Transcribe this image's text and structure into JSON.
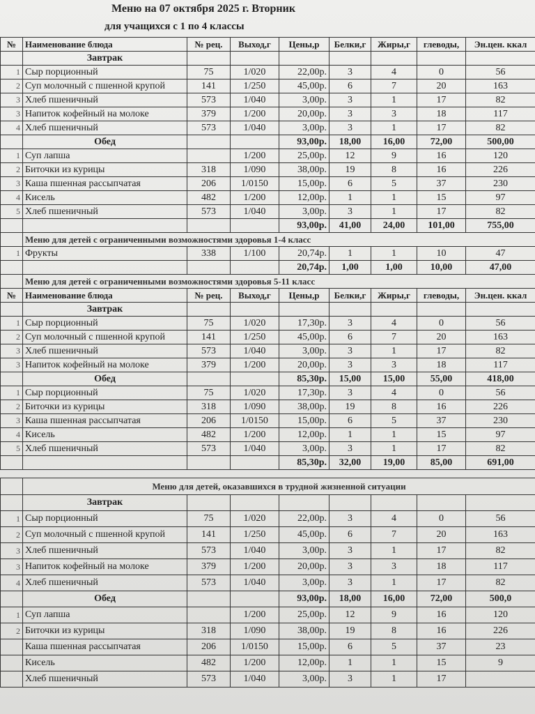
{
  "title": "Меню на 07 октября 2025 г. Вторник",
  "subtitle": "для учащихся с 1 по 4 классы",
  "headers": [
    "№",
    "Наименование блюда",
    "№ рец.",
    "Выход,г",
    "Цены,р",
    "Белки,г",
    "Жиры,г",
    "Углеводы,г",
    "Эн.цен. ккал"
  ],
  "header_visible": [
    "№",
    "Наименование блюда",
    "№ рец.",
    "Выход,г",
    "Цены,р",
    "Белки,г",
    "Жиры,г",
    "глеводы,",
    "Эн.цен. ккал"
  ],
  "table1": [
    {
      "type": "header"
    },
    {
      "type": "cat",
      "cells": [
        "",
        "Завтрак",
        "",
        "",
        "",
        "",
        "",
        "",
        ""
      ]
    },
    {
      "type": "item",
      "cells": [
        "1",
        "Сыр порционный",
        "75",
        "1/020",
        "22,00р.",
        "3",
        "4",
        "0",
        "56"
      ]
    },
    {
      "type": "item",
      "cells": [
        "2",
        "Суп молочный с пшенной крупой",
        "141",
        "1/250",
        "45,00р.",
        "6",
        "7",
        "20",
        "163"
      ]
    },
    {
      "type": "item",
      "cells": [
        "3",
        "Хлеб пшеничный",
        "573",
        "1/040",
        "3,00р.",
        "3",
        "1",
        "17",
        "82"
      ]
    },
    {
      "type": "item",
      "cells": [
        "3",
        "Напиток кофейный на молоке",
        "379",
        "1/200",
        "20,00р.",
        "3",
        "3",
        "18",
        "117"
      ]
    },
    {
      "type": "item",
      "cells": [
        "4",
        "Хлеб пшеничный",
        "573",
        "1/040",
        "3,00р.",
        "3",
        "1",
        "17",
        "82"
      ]
    },
    {
      "type": "cat",
      "bold": true,
      "cells": [
        "",
        "Обед",
        "",
        "",
        "93,00р.",
        "18,00",
        "16,00",
        "72,00",
        "500,00"
      ]
    },
    {
      "type": "item",
      "cells": [
        "1",
        "Суп лапша",
        "",
        "1/200",
        "25,00р.",
        "12",
        "9",
        "16",
        "120"
      ]
    },
    {
      "type": "item",
      "cells": [
        "2",
        "Биточки из курицы",
        "318",
        "1/090",
        "38,00р.",
        "19",
        "8",
        "16",
        "226"
      ]
    },
    {
      "type": "item",
      "cells": [
        "3",
        "Каша пшенная рассыпчатая",
        "206",
        "1/0150",
        "15,00р.",
        "6",
        "5",
        "37",
        "230"
      ]
    },
    {
      "type": "item",
      "cells": [
        "4",
        "Кисель",
        "482",
        "1/200",
        "12,00р.",
        "1",
        "1",
        "15",
        "97"
      ]
    },
    {
      "type": "item",
      "cells": [
        "5",
        "Хлеб пшеничный",
        "573",
        "1/040",
        "3,00р.",
        "3",
        "1",
        "17",
        "82"
      ]
    },
    {
      "type": "total",
      "cells": [
        "",
        "",
        "",
        "",
        "93,00р.",
        "41,00",
        "24,00",
        "101,00",
        "755,00"
      ]
    },
    {
      "type": "sect",
      "text": "Меню для детей с ограниченными возможностями здоровья 1-4 класс"
    },
    {
      "type": "item",
      "cells": [
        "1",
        "Фрукты",
        "338",
        "1/100",
        "20,74р.",
        "1",
        "1",
        "10",
        "47"
      ]
    },
    {
      "type": "total",
      "cells": [
        "",
        "",
        "",
        "",
        "20,74р.",
        "1,00",
        "1,00",
        "10,00",
        "47,00"
      ]
    },
    {
      "type": "sect",
      "text": "Меню для детей с ограниченными возможностями здоровья 5-11 класс"
    },
    {
      "type": "header"
    },
    {
      "type": "cat",
      "cells": [
        "",
        "Завтрак",
        "",
        "",
        "",
        "",
        "",
        "",
        ""
      ]
    },
    {
      "type": "item",
      "cells": [
        "1",
        "Сыр порционный",
        "75",
        "1/020",
        "17,30р.",
        "3",
        "4",
        "0",
        "56"
      ]
    },
    {
      "type": "item",
      "cells": [
        "2",
        "Суп молочный с пшенной крупой",
        "141",
        "1/250",
        "45,00р.",
        "6",
        "7",
        "20",
        "163"
      ]
    },
    {
      "type": "item",
      "cells": [
        "3",
        "Хлеб пшеничный",
        "573",
        "1/040",
        "3,00р.",
        "3",
        "1",
        "17",
        "82"
      ]
    },
    {
      "type": "item",
      "cells": [
        "3",
        "Напиток кофейный на молоке",
        "379",
        "1/200",
        "20,00р.",
        "3",
        "3",
        "18",
        "117"
      ]
    },
    {
      "type": "cat",
      "bold": true,
      "cells": [
        "",
        "Обед",
        "",
        "",
        "85,30р.",
        "15,00",
        "15,00",
        "55,00",
        "418,00"
      ]
    },
    {
      "type": "item",
      "cells": [
        "1",
        "Сыр порционный",
        "75",
        "1/020",
        "17,30р.",
        "3",
        "4",
        "0",
        "56"
      ]
    },
    {
      "type": "item",
      "cells": [
        "2",
        "Биточки из курицы",
        "318",
        "1/090",
        "38,00р.",
        "19",
        "8",
        "16",
        "226"
      ]
    },
    {
      "type": "item",
      "cells": [
        "3",
        "Каша пшенная рассыпчатая",
        "206",
        "1/0150",
        "15,00р.",
        "6",
        "5",
        "37",
        "230"
      ]
    },
    {
      "type": "item",
      "cells": [
        "4",
        "Кисель",
        "482",
        "1/200",
        "12,00р.",
        "1",
        "1",
        "15",
        "97"
      ]
    },
    {
      "type": "item",
      "cells": [
        "5",
        "Хлеб пшеничный",
        "573",
        "1/040",
        "3,00р.",
        "3",
        "1",
        "17",
        "82"
      ]
    },
    {
      "type": "total",
      "cells": [
        "",
        "",
        "",
        "",
        "85,30р.",
        "32,00",
        "19,00",
        "85,00",
        "691,00"
      ]
    }
  ],
  "table2": [
    {
      "type": "sect",
      "text": "Меню для детей, оказавшихся в трудной жизненной ситуации"
    },
    {
      "type": "cat",
      "cells": [
        "",
        "Завтрак",
        "",
        "",
        "",
        "",
        "",
        "",
        ""
      ]
    },
    {
      "type": "item",
      "cells": [
        "1",
        "Сыр порционный",
        "75",
        "1/020",
        "22,00р.",
        "3",
        "4",
        "0",
        "56"
      ]
    },
    {
      "type": "item",
      "cells": [
        "2",
        "Суп молочный с пшенной крупой",
        "141",
        "1/250",
        "45,00р.",
        "6",
        "7",
        "20",
        "163"
      ]
    },
    {
      "type": "item",
      "cells": [
        "3",
        "Хлеб пшеничный",
        "573",
        "1/040",
        "3,00р.",
        "3",
        "1",
        "17",
        "82"
      ]
    },
    {
      "type": "item",
      "cells": [
        "3",
        "Напиток кофейный на молоке",
        "379",
        "1/200",
        "20,00р.",
        "3",
        "3",
        "18",
        "117"
      ]
    },
    {
      "type": "item",
      "cells": [
        "4",
        "Хлеб пшеничный",
        "573",
        "1/040",
        "3,00р.",
        "3",
        "1",
        "17",
        "82"
      ]
    },
    {
      "type": "cat",
      "bold": true,
      "cells": [
        "",
        "Обед",
        "",
        "",
        "93,00р.",
        "18,00",
        "16,00",
        "72,00",
        "500,0"
      ]
    },
    {
      "type": "item",
      "cells": [
        "1",
        "Суп лапша",
        "",
        "1/200",
        "25,00р.",
        "12",
        "9",
        "16",
        "120"
      ]
    },
    {
      "type": "item",
      "cells": [
        "2",
        "Биточки из курицы",
        "318",
        "1/090",
        "38,00р.",
        "19",
        "8",
        "16",
        "226"
      ]
    },
    {
      "type": "item",
      "cells": [
        "",
        "Каша пшенная рассыпчатая",
        "206",
        "1/0150",
        "15,00р.",
        "6",
        "5",
        "37",
        "23"
      ]
    },
    {
      "type": "item",
      "cells": [
        "",
        "Кисель",
        "482",
        "1/200",
        "12,00р.",
        "1",
        "1",
        "15",
        "9"
      ]
    },
    {
      "type": "item",
      "cells": [
        "",
        "Хлеб пшеничный",
        "573",
        "1/040",
        "3,00р.",
        "3",
        "1",
        "17",
        ""
      ]
    }
  ]
}
